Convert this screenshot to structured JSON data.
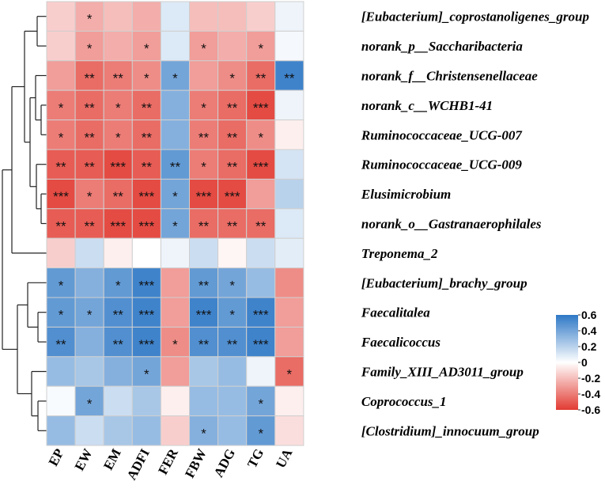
{
  "chart_data": {
    "type": "heatmap",
    "title": "",
    "columns": [
      "EP",
      "EW",
      "EM",
      "ADFI",
      "FER",
      "FBW",
      "ADG",
      "TG",
      "UA"
    ],
    "rows": [
      "[Eubacterium]_coprostanoligenes_group",
      "norank_p__Saccharibacteria",
      "norank_f__Christensenellaceae",
      "norank_c__WCHB1-41",
      "Ruminococcaceae_UCG-007",
      "Ruminococcaceae_UCG-009",
      "Elusimicrobium",
      "norank_o__Gastranaerophilales",
      "Treponema_2",
      "[Eubacterium]_brachy_group",
      "Faecalitalea",
      "Faecalicoccus",
      "Family_XIII_AD3011_group",
      "Coprococcus_1",
      "[Clostridium]_innocuum_group"
    ],
    "values": [
      [
        -0.15,
        -0.25,
        -0.2,
        -0.25,
        0.1,
        -0.2,
        -0.2,
        -0.15,
        0.05
      ],
      [
        -0.15,
        -0.3,
        -0.25,
        -0.3,
        0.1,
        -0.3,
        -0.25,
        -0.3,
        0.03
      ],
      [
        -0.3,
        -0.45,
        -0.4,
        -0.35,
        0.4,
        -0.3,
        -0.35,
        -0.45,
        0.55
      ],
      [
        -0.4,
        -0.45,
        -0.4,
        -0.45,
        0.35,
        -0.4,
        -0.45,
        -0.55,
        0.05
      ],
      [
        -0.4,
        -0.45,
        -0.4,
        -0.45,
        0.35,
        -0.4,
        -0.45,
        -0.35,
        -0.05
      ],
      [
        -0.5,
        -0.5,
        -0.55,
        -0.5,
        0.45,
        -0.4,
        -0.45,
        -0.55,
        0.12
      ],
      [
        -0.55,
        -0.4,
        -0.45,
        -0.55,
        0.4,
        -0.55,
        -0.55,
        -0.3,
        0.2
      ],
      [
        -0.5,
        -0.5,
        -0.55,
        -0.55,
        0.4,
        -0.45,
        -0.45,
        -0.45,
        0.1
      ],
      [
        -0.15,
        0.15,
        -0.05,
        0.0,
        0.05,
        0.15,
        -0.03,
        0.15,
        0.08
      ],
      [
        0.45,
        0.35,
        0.45,
        0.55,
        -0.3,
        0.45,
        0.4,
        0.3,
        -0.35
      ],
      [
        0.45,
        0.4,
        0.5,
        0.55,
        -0.3,
        0.55,
        0.45,
        0.55,
        -0.3
      ],
      [
        0.5,
        0.35,
        0.5,
        0.55,
        -0.35,
        0.5,
        0.5,
        0.55,
        -0.3
      ],
      [
        0.3,
        0.25,
        0.35,
        0.4,
        -0.3,
        0.25,
        0.3,
        0.05,
        -0.45
      ],
      [
        0.02,
        0.4,
        0.15,
        0.25,
        -0.05,
        0.3,
        0.3,
        0.4,
        -0.05
      ],
      [
        0.3,
        0.15,
        0.25,
        0.3,
        -0.15,
        0.35,
        0.3,
        0.45,
        -0.1
      ]
    ],
    "significance": [
      [
        "",
        "*",
        "",
        "",
        "",
        "",
        "",
        "",
        ""
      ],
      [
        "",
        "*",
        "",
        "*",
        "",
        "*",
        "",
        "*",
        ""
      ],
      [
        "",
        "**",
        "**",
        "*",
        "*",
        "",
        "*",
        "**",
        "**"
      ],
      [
        "*",
        "**",
        "*",
        "**",
        "",
        "*",
        "**",
        "***",
        ""
      ],
      [
        "*",
        "**",
        "*",
        "**",
        "",
        "**",
        "**",
        "*",
        ""
      ],
      [
        "**",
        "**",
        "***",
        "**",
        "**",
        "*",
        "**",
        "***",
        ""
      ],
      [
        "***",
        "*",
        "**",
        "***",
        "*",
        "***",
        "***",
        "",
        ""
      ],
      [
        "**",
        "**",
        "***",
        "***",
        "*",
        "**",
        "**",
        "**",
        ""
      ],
      [
        "",
        "",
        "",
        "",
        "",
        "",
        "",
        "",
        ""
      ],
      [
        "*",
        "",
        "*",
        "***",
        "",
        "**",
        "*",
        "",
        ""
      ],
      [
        "*",
        "*",
        "**",
        "***",
        "",
        "***",
        "*",
        "***",
        ""
      ],
      [
        "**",
        "",
        "**",
        "***",
        "*",
        "**",
        "**",
        "***",
        ""
      ],
      [
        "",
        "",
        "",
        "*",
        "",
        "",
        "",
        "",
        "*"
      ],
      [
        "",
        "*",
        "",
        "",
        "",
        "",
        "",
        "*",
        ""
      ],
      [
        "",
        "",
        "",
        "",
        "",
        "*",
        "",
        "*",
        ""
      ]
    ],
    "legend": {
      "range": [
        -0.6,
        0.6
      ],
      "ticks": [
        "0.6",
        "0.4",
        "0.2",
        "0",
        "-0.2",
        "-0.4",
        "-0.6"
      ],
      "colors": {
        "low": "#e23b32",
        "mid": "#ffffff",
        "high": "#2e78c6"
      }
    },
    "dendrogram": "left",
    "grid": true
  }
}
